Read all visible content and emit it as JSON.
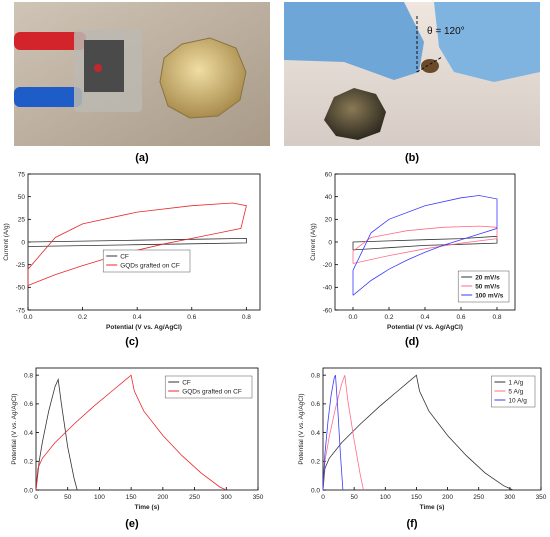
{
  "panels": {
    "a": "(a)",
    "b": "(b)",
    "c": "(c)",
    "d": "(d)",
    "e": "(e)",
    "f": "(f)"
  },
  "photo_b": {
    "angle_label": "θ = 120°"
  },
  "colors": {
    "black": "#333333",
    "red": "#e8282b",
    "blue": "#3b3bff",
    "pink": "#ff6d8a"
  },
  "chart_data": [
    {
      "id": "c",
      "type": "line",
      "xlabel": "Potential (V vs. Ag/AgCl)",
      "ylabel": "Current (A/g)",
      "xlim": [
        0.0,
        0.85
      ],
      "ylim": [
        -75,
        75
      ],
      "xticks": [
        0.0,
        0.2,
        0.4,
        0.6,
        0.8
      ],
      "yticks": [
        -75,
        -50,
        -25,
        0,
        25,
        50,
        75
      ],
      "legend": "center-right",
      "series": [
        {
          "name": "CF",
          "color": "#333333",
          "x": [
            0.0,
            0.2,
            0.4,
            0.6,
            0.8,
            0.8,
            0.6,
            0.4,
            0.2,
            0.0,
            0.0
          ],
          "y": [
            -5,
            -4,
            -3,
            -2,
            -1,
            4,
            3,
            2,
            1,
            0,
            -5
          ]
        },
        {
          "name": "GQDs grafted on CF",
          "color": "#e8282b",
          "x": [
            0.0,
            0.1,
            0.2,
            0.3,
            0.4,
            0.5,
            0.6,
            0.7,
            0.78,
            0.8,
            0.75,
            0.6,
            0.4,
            0.2,
            0.1,
            0.0,
            0.0
          ],
          "y": [
            -48,
            -36,
            -26,
            -17,
            -9,
            -2,
            4,
            10,
            15,
            40,
            43,
            40,
            33,
            20,
            5,
            -30,
            -48
          ]
        }
      ]
    },
    {
      "id": "d",
      "type": "line",
      "xlabel": "Potential (V vs. Ag/AgCl)",
      "ylabel": "Current (A/g)",
      "xlim": [
        -0.1,
        0.9
      ],
      "ylim": [
        -60,
        60
      ],
      "xticks": [
        0.0,
        0.2,
        0.4,
        0.6,
        0.8
      ],
      "yticks": [
        -60,
        -40,
        -20,
        0,
        20,
        40,
        60
      ],
      "legend": "bottom-right",
      "series": [
        {
          "name": "20 mV/s",
          "color": "#333333",
          "x": [
            0.0,
            0.2,
            0.4,
            0.6,
            0.8,
            0.8,
            0.6,
            0.4,
            0.2,
            0.0,
            0.0
          ],
          "y": [
            -7,
            -5,
            -3,
            -2,
            -1,
            5,
            3,
            2,
            1,
            0,
            -7
          ]
        },
        {
          "name": "50 mV/s",
          "color": "#ff6d8a",
          "x": [
            0.0,
            0.2,
            0.4,
            0.6,
            0.8,
            0.8,
            0.7,
            0.5,
            0.3,
            0.1,
            0.0,
            0.0
          ],
          "y": [
            -19,
            -12,
            -6,
            -1,
            3,
            13,
            14,
            13,
            10,
            4,
            -8,
            -19
          ]
        },
        {
          "name": "100 mV/s",
          "color": "#3b3bff",
          "x": [
            0.0,
            0.1,
            0.2,
            0.3,
            0.4,
            0.5,
            0.6,
            0.7,
            0.8,
            0.8,
            0.7,
            0.6,
            0.4,
            0.2,
            0.1,
            0.0,
            0.0
          ],
          "y": [
            -47,
            -34,
            -24,
            -16,
            -9,
            -3,
            2,
            7,
            12,
            38,
            41,
            39,
            32,
            20,
            8,
            -25,
            -47
          ]
        }
      ]
    },
    {
      "id": "e",
      "type": "line",
      "xlabel": "Time (s)",
      "ylabel": "Potential (V vs. Ag/AgCl)",
      "xlim": [
        0,
        350
      ],
      "ylim": [
        0.0,
        0.85
      ],
      "xticks": [
        0,
        50,
        100,
        150,
        200,
        250,
        300,
        350
      ],
      "yticks": [
        0.0,
        0.2,
        0.4,
        0.6,
        0.8
      ],
      "legend": "top-right",
      "series": [
        {
          "name": "CF",
          "color": "#333333",
          "x": [
            0,
            5,
            10,
            20,
            30,
            35,
            40,
            50,
            60,
            65
          ],
          "y": [
            0.0,
            0.2,
            0.33,
            0.55,
            0.72,
            0.77,
            0.6,
            0.3,
            0.08,
            0.0
          ]
        },
        {
          "name": "GQDs grafted on CF",
          "color": "#e8282b",
          "x": [
            0,
            3,
            10,
            30,
            60,
            90,
            120,
            150,
            155,
            170,
            200,
            230,
            260,
            290,
            300
          ],
          "y": [
            0.0,
            0.15,
            0.22,
            0.33,
            0.46,
            0.58,
            0.69,
            0.8,
            0.69,
            0.55,
            0.38,
            0.24,
            0.12,
            0.02,
            0.0
          ]
        }
      ]
    },
    {
      "id": "f",
      "type": "line",
      "xlabel": "Time (s)",
      "ylabel": "Potential (V vs. Ag/AgCl)",
      "xlim": [
        0,
        350
      ],
      "ylim": [
        0.0,
        0.85
      ],
      "xticks": [
        0,
        50,
        100,
        150,
        200,
        250,
        300,
        350
      ],
      "yticks": [
        0.0,
        0.2,
        0.4,
        0.6,
        0.8
      ],
      "legend": "top-right",
      "series": [
        {
          "name": "1 A/g",
          "color": "#333333",
          "x": [
            0,
            3,
            10,
            30,
            60,
            90,
            120,
            150,
            155,
            170,
            200,
            230,
            260,
            290,
            305
          ],
          "y": [
            0.0,
            0.15,
            0.22,
            0.33,
            0.46,
            0.58,
            0.69,
            0.8,
            0.69,
            0.55,
            0.38,
            0.24,
            0.12,
            0.03,
            0.0
          ]
        },
        {
          "name": "5 A/g",
          "color": "#ff6d8a",
          "x": [
            0,
            3,
            10,
            20,
            30,
            35,
            40,
            50,
            60,
            65
          ],
          "y": [
            0.0,
            0.2,
            0.37,
            0.57,
            0.74,
            0.8,
            0.62,
            0.35,
            0.1,
            0.0
          ]
        },
        {
          "name": "10 A/g",
          "color": "#3b3bff",
          "x": [
            0,
            3,
            8,
            13,
            18,
            20,
            24,
            28,
            32
          ],
          "y": [
            0.0,
            0.25,
            0.48,
            0.66,
            0.78,
            0.8,
            0.55,
            0.25,
            0.0
          ]
        }
      ]
    }
  ]
}
